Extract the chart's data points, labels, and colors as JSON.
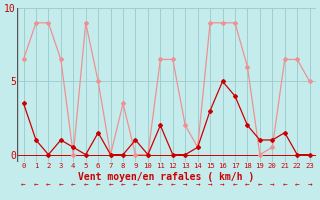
{
  "xlabel": "Vent moyen/en rafales ( km/h )",
  "background_color": "#c5eced",
  "grid_color": "#a0cece",
  "x": [
    0,
    1,
    2,
    3,
    4,
    5,
    6,
    7,
    8,
    9,
    10,
    11,
    12,
    13,
    14,
    15,
    16,
    17,
    18,
    19,
    20,
    21,
    22,
    23
  ],
  "rafales": [
    6.5,
    9.0,
    9.0,
    6.5,
    0.0,
    9.0,
    5.0,
    0.0,
    3.5,
    0.0,
    0.0,
    6.5,
    6.5,
    2.0,
    0.5,
    9.0,
    9.0,
    9.0,
    6.0,
    0.0,
    0.5,
    6.5,
    6.5,
    5.0
  ],
  "moyen": [
    3.5,
    1.0,
    0.0,
    1.0,
    0.5,
    0.0,
    1.5,
    0.0,
    0.0,
    1.0,
    0.0,
    2.0,
    0.0,
    0.0,
    0.5,
    3.0,
    5.0,
    4.0,
    2.0,
    1.0,
    1.0,
    1.5,
    0.0,
    0.0
  ],
  "color_rafales": "#f09090",
  "color_moyen": "#cc0000",
  "ylim": [
    -0.5,
    10
  ],
  "yticks": [
    0,
    5,
    10
  ],
  "wind_arrows": [
    -1,
    -1,
    -1,
    -1,
    -1,
    -1,
    -1,
    -1,
    -1,
    -1,
    -1,
    -1,
    -1,
    1,
    1,
    1,
    1,
    -1,
    -1,
    -1,
    1,
    -1,
    -1,
    1
  ]
}
